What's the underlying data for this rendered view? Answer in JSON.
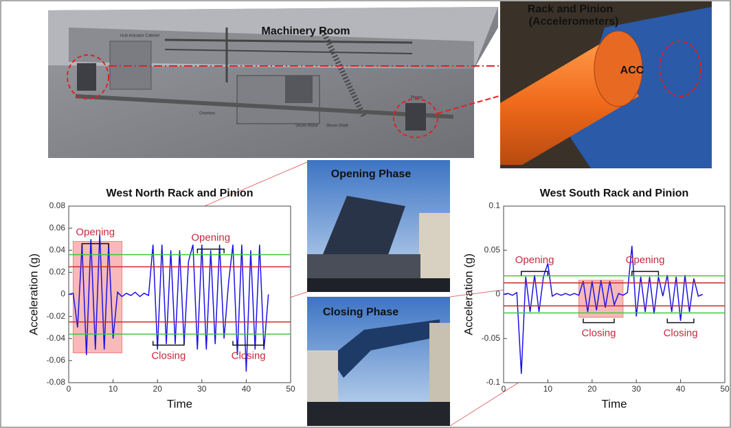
{
  "machinery_room": {
    "title": "Machinery Room",
    "labels": [
      "Hub Actuator Cabinet",
      "Gearbox",
      "Shore Motor",
      "Shore Shaft",
      "Pinion"
    ]
  },
  "rack_photo": {
    "title": "Rack and Pinion",
    "subtitle": "(Accelerometers)",
    "label": "ACC"
  },
  "opening_photo": {
    "title": "Opening Phase"
  },
  "closing_photo": {
    "title": "Closing Phase"
  },
  "chart_data": [
    {
      "type": "line",
      "title": "West North Rack and Pinion",
      "xlabel": "Time",
      "ylabel": "Acceleration (g)",
      "xlim": [
        0,
        50
      ],
      "ylim": [
        -0.08,
        0.08
      ],
      "xticks": [
        0,
        10,
        20,
        30,
        40,
        50
      ],
      "yticks": [
        -0.08,
        -0.06,
        -0.04,
        -0.02,
        0,
        0.02,
        0.04,
        0.06,
        0.08
      ],
      "x": [
        0,
        1,
        2,
        3,
        4,
        5,
        6,
        7,
        8,
        9,
        10,
        11,
        12,
        13,
        14,
        15,
        16,
        17,
        18,
        19,
        20,
        21,
        22,
        23,
        24,
        25,
        26,
        27,
        28,
        29,
        30,
        31,
        32,
        33,
        34,
        35,
        36,
        37,
        38,
        39,
        40,
        41,
        42,
        43,
        44,
        45
      ],
      "values": [
        0,
        0.001,
        -0.03,
        0.045,
        -0.055,
        0.05,
        -0.05,
        0.055,
        -0.05,
        0.045,
        -0.04,
        0.002,
        -0.002,
        0.001,
        -0.001,
        0.002,
        -0.002,
        0.001,
        -0.001,
        0.045,
        -0.05,
        0.045,
        -0.045,
        0.04,
        -0.045,
        0.04,
        -0.045,
        0.03,
        0.045,
        -0.05,
        0.045,
        -0.05,
        0.04,
        -0.045,
        0.045,
        -0.04,
        0.01,
        0.045,
        -0.055,
        0.045,
        -0.07,
        0.04,
        -0.05,
        0.045,
        -0.05,
        0
      ],
      "color": "#1a10e8",
      "hlines": [
        {
          "value": 0.036,
          "color": "#3cc83c"
        },
        {
          "value": -0.036,
          "color": "#3cc83c"
        },
        {
          "value": 0.025,
          "color": "#d02828"
        },
        {
          "value": -0.025,
          "color": "#d02828"
        }
      ],
      "highlight": {
        "x": [
          1,
          12
        ],
        "y": [
          -0.053,
          0.048
        ],
        "color": "#f08080"
      },
      "annotations": [
        {
          "text": "Opening",
          "x": [
            3,
            9
          ],
          "y": 0.046,
          "side": "above"
        },
        {
          "text": "Opening",
          "x": [
            29,
            35
          ],
          "y": 0.041,
          "side": "above"
        },
        {
          "text": "Closing",
          "x": [
            19,
            26
          ],
          "y": -0.046,
          "side": "below"
        },
        {
          "text": "Closing",
          "x": [
            37,
            44
          ],
          "y": -0.046,
          "side": "below"
        }
      ]
    },
    {
      "type": "line",
      "title": "West South Rack and Pinion",
      "xlabel": "Time",
      "ylabel": "Acceleration (g)",
      "xlim": [
        0,
        50
      ],
      "ylim": [
        -0.1,
        0.1
      ],
      "xticks": [
        0,
        10,
        20,
        30,
        40,
        50
      ],
      "yticks": [
        -0.1,
        -0.05,
        0,
        0.05,
        0.1
      ],
      "x": [
        0,
        1,
        2,
        3,
        4,
        5,
        6,
        7,
        8,
        9,
        10,
        11,
        12,
        13,
        14,
        15,
        16,
        17,
        18,
        19,
        20,
        21,
        22,
        23,
        24,
        25,
        26,
        27,
        28,
        29,
        30,
        31,
        32,
        33,
        34,
        35,
        36,
        37,
        38,
        39,
        40,
        41,
        42,
        43,
        44,
        45
      ],
      "values": [
        0,
        0.001,
        -0.001,
        0.002,
        -0.09,
        0.02,
        -0.02,
        0.022,
        -0.02,
        0.02,
        0.035,
        -0.002,
        0.001,
        -0.001,
        0.001,
        -0.001,
        0.001,
        -0.001,
        0.015,
        -0.02,
        0.015,
        -0.018,
        0.016,
        -0.015,
        0.015,
        -0.012,
        0.001,
        -0.001,
        0.002,
        0.055,
        -0.025,
        0.02,
        -0.02,
        0.02,
        -0.022,
        0.02,
        -0.002,
        0.022,
        -0.02,
        0.02,
        -0.03,
        0.022,
        -0.02,
        0.018,
        -0.002,
        0
      ],
      "color": "#1a10e8",
      "hlines": [
        {
          "value": 0.021,
          "color": "#3cc83c"
        },
        {
          "value": -0.021,
          "color": "#3cc83c"
        },
        {
          "value": 0.013,
          "color": "#d02828"
        },
        {
          "value": -0.013,
          "color": "#d02828"
        }
      ],
      "highlight": {
        "x": [
          17,
          27
        ],
        "y": [
          -0.026,
          0.016
        ],
        "color": "#f08080"
      },
      "annotations": [
        {
          "text": "Opening",
          "x": [
            4,
            10
          ],
          "y": 0.026,
          "side": "above"
        },
        {
          "text": "Opening",
          "x": [
            29,
            35
          ],
          "y": 0.026,
          "side": "above"
        },
        {
          "text": "Closing",
          "x": [
            18,
            25
          ],
          "y": -0.032,
          "side": "below"
        },
        {
          "text": "Closing",
          "x": [
            37,
            43
          ],
          "y": -0.032,
          "side": "below"
        }
      ]
    }
  ]
}
